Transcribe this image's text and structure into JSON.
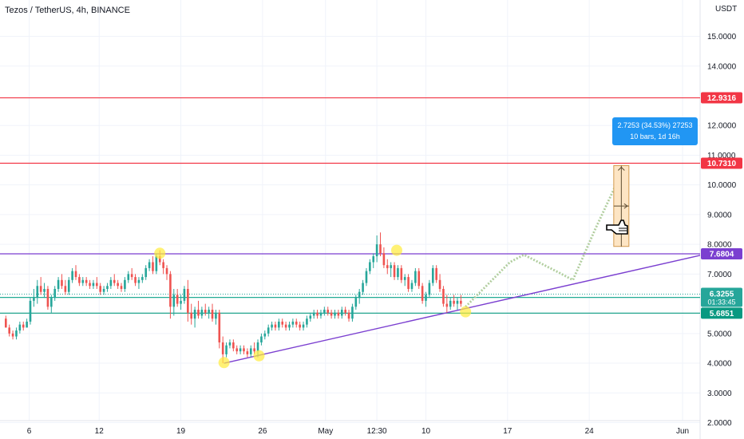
{
  "chart_data": {
    "type": "candlestick",
    "title": "Tezos / TetherUS, 4h, BINANCE",
    "currency": "USDT",
    "ylim": [
      1.6,
      15.6
    ],
    "y_ticks": [
      {
        "value": 2.0,
        "label": "2.0000"
      },
      {
        "value": 3.0,
        "label": "3.0000"
      },
      {
        "value": 4.0,
        "label": "4.0000"
      },
      {
        "value": 5.0,
        "label": "5.0000"
      },
      {
        "value": 7.0,
        "label": "7.0000"
      },
      {
        "value": 8.0,
        "label": "8.0000"
      },
      {
        "value": 9.0,
        "label": "9.0000"
      },
      {
        "value": 10.0,
        "label": "10.0000"
      },
      {
        "value": 11.0,
        "label": "11.0000"
      },
      {
        "value": 12.0,
        "label": "12.0000"
      },
      {
        "value": 14.0,
        "label": "14.0000"
      },
      {
        "value": 15.0,
        "label": "15.0000"
      }
    ],
    "x_ticks": [
      {
        "day": 6,
        "label": "6"
      },
      {
        "day": 12,
        "label": "12"
      },
      {
        "day": 19,
        "label": "19"
      },
      {
        "day": 26,
        "label": "26"
      },
      {
        "day": 31.4,
        "label": "May"
      },
      {
        "day": 35.8,
        "label": "12:30"
      },
      {
        "day": 40,
        "label": "10"
      },
      {
        "day": 47,
        "label": "17"
      },
      {
        "day": 54,
        "label": "24"
      },
      {
        "day": 62,
        "label": "Jun"
      }
    ],
    "xlim": [
      3.5,
      63.5
    ],
    "price_levels": [
      {
        "name": "resistance-12-9316",
        "value": 12.9316,
        "label": "12.9316",
        "color": "#f23645"
      },
      {
        "name": "resistance-10-7310",
        "value": 10.731,
        "label": "10.7310",
        "color": "#f23645"
      },
      {
        "name": "level-7-6804",
        "value": 7.6804,
        "label": "7.6804",
        "color": "#7b3fd0"
      },
      {
        "name": "support-6-2139",
        "value": 6.2139,
        "label": "6.2139",
        "color": "#22ab94"
      },
      {
        "name": "support-5-6851",
        "value": 5.6851,
        "label": "5.6851",
        "color": "#089981"
      }
    ],
    "current_price": {
      "value": 6.3255,
      "label": "6.3255",
      "countdown": "01:33:45",
      "color": "#26a69a"
    },
    "trendline": {
      "color": "#7b3fd0",
      "points": [
        {
          "day": 22.7,
          "value": 4.0
        },
        {
          "day": 63.5,
          "value": 7.63
        }
      ]
    },
    "highlight_points": [
      {
        "day": 17.2,
        "value": 7.7
      },
      {
        "day": 22.7,
        "value": 4.02
      },
      {
        "day": 25.7,
        "value": 4.25
      },
      {
        "day": 37.5,
        "value": 7.8
      },
      {
        "day": 43.4,
        "value": 5.73
      }
    ],
    "projection": {
      "color": "#a8d8a0",
      "points": [
        {
          "day": 43.4,
          "value": 5.9
        },
        {
          "day": 47.2,
          "value": 7.4
        },
        {
          "day": 48.4,
          "value": 7.65
        },
        {
          "day": 51.4,
          "value": 7.05
        },
        {
          "day": 52.6,
          "value": 6.8
        },
        {
          "day": 54.5,
          "value": 8.5
        },
        {
          "day": 57,
          "value": 10.6
        }
      ]
    },
    "measure_box": {
      "day_start": 56.1,
      "day_end": 57.4,
      "low": 7.93,
      "high": 10.65,
      "fill": "#fde5c4",
      "stroke": "#d39a4e"
    },
    "measure_label": {
      "line1": "2.7253 (34.53%) 27253",
      "line2": "10 bars, 1d 16h",
      "color": "#2196f3"
    },
    "candles": [
      [
        4.0,
        5.5,
        5.6,
        5.2,
        5.2
      ],
      [
        4.3,
        5.2,
        5.3,
        4.9,
        5.0
      ],
      [
        4.6,
        5.0,
        5.1,
        4.8,
        4.9
      ],
      [
        4.9,
        4.9,
        5.2,
        4.8,
        5.1
      ],
      [
        5.2,
        5.1,
        5.4,
        5.0,
        5.3
      ],
      [
        5.5,
        5.3,
        5.4,
        5.1,
        5.2
      ],
      [
        5.8,
        5.2,
        5.5,
        5.2,
        5.4
      ],
      [
        6.1,
        5.4,
        6.2,
        5.3,
        6.1
      ],
      [
        6.4,
        6.1,
        6.5,
        5.9,
        6.2
      ],
      [
        6.7,
        6.2,
        6.8,
        6.0,
        6.6
      ],
      [
        7.0,
        6.6,
        6.9,
        6.3,
        6.4
      ],
      [
        7.3,
        6.4,
        6.7,
        6.2,
        6.5
      ],
      [
        7.6,
        6.5,
        6.6,
        5.8,
        5.9
      ],
      [
        7.9,
        5.9,
        6.3,
        5.7,
        6.2
      ],
      [
        8.2,
        6.2,
        6.6,
        6.1,
        6.5
      ],
      [
        8.5,
        6.5,
        6.9,
        6.4,
        6.8
      ],
      [
        8.8,
        6.8,
        7.0,
        6.5,
        6.6
      ],
      [
        9.1,
        6.6,
        6.8,
        6.3,
        6.4
      ],
      [
        9.4,
        6.4,
        6.9,
        6.3,
        6.8
      ],
      [
        9.7,
        6.8,
        7.2,
        6.7,
        7.1
      ],
      [
        10.0,
        7.1,
        7.3,
        6.8,
        6.9
      ],
      [
        10.3,
        6.9,
        7.0,
        6.6,
        6.7
      ],
      [
        10.6,
        6.7,
        6.9,
        6.6,
        6.8
      ],
      [
        10.9,
        6.8,
        6.9,
        6.6,
        6.7
      ],
      [
        11.2,
        6.7,
        6.8,
        6.5,
        6.6
      ],
      [
        11.5,
        6.6,
        6.8,
        6.5,
        6.7
      ],
      [
        11.8,
        6.7,
        6.9,
        6.5,
        6.6
      ],
      [
        12.1,
        6.6,
        6.7,
        6.3,
        6.4
      ],
      [
        12.4,
        6.4,
        6.6,
        6.3,
        6.5
      ],
      [
        12.7,
        6.5,
        6.7,
        6.4,
        6.6
      ],
      [
        13.0,
        6.6,
        6.9,
        6.5,
        6.8
      ],
      [
        13.3,
        6.8,
        7.0,
        6.6,
        6.7
      ],
      [
        13.6,
        6.7,
        6.8,
        6.5,
        6.6
      ],
      [
        13.9,
        6.6,
        6.7,
        6.4,
        6.5
      ],
      [
        14.2,
        6.5,
        6.9,
        6.4,
        6.8
      ],
      [
        14.5,
        6.8,
        7.1,
        6.7,
        7.0
      ],
      [
        14.8,
        7.0,
        7.2,
        6.8,
        6.9
      ],
      [
        15.1,
        6.9,
        7.0,
        6.6,
        6.7
      ],
      [
        15.4,
        6.7,
        6.9,
        6.5,
        6.8
      ],
      [
        15.7,
        6.8,
        7.0,
        6.7,
        6.9
      ],
      [
        16.0,
        6.9,
        7.3,
        6.8,
        7.2
      ],
      [
        16.3,
        7.2,
        7.5,
        7.1,
        7.4
      ],
      [
        16.6,
        7.4,
        7.6,
        7.0,
        7.1
      ],
      [
        16.9,
        7.1,
        7.7,
        7.0,
        7.6
      ],
      [
        17.2,
        7.6,
        7.8,
        7.3,
        7.4
      ],
      [
        17.5,
        7.4,
        7.5,
        7.0,
        7.2
      ],
      [
        17.8,
        7.2,
        7.3,
        6.8,
        7.0
      ],
      [
        18.1,
        7.0,
        7.1,
        5.5,
        5.9
      ],
      [
        18.4,
        5.9,
        6.5,
        5.6,
        6.3
      ],
      [
        18.7,
        6.3,
        6.5,
        5.9,
        6.0
      ],
      [
        19.0,
        6.0,
        6.3,
        5.8,
        6.1
      ],
      [
        19.3,
        6.1,
        6.6,
        6.0,
        6.5
      ],
      [
        19.6,
        6.5,
        6.8,
        5.4,
        5.7
      ],
      [
        19.9,
        5.7,
        6.0,
        5.3,
        5.5
      ],
      [
        20.2,
        5.5,
        5.9,
        5.2,
        5.8
      ],
      [
        20.5,
        5.8,
        6.1,
        5.5,
        5.6
      ],
      [
        20.8,
        5.6,
        5.9,
        5.5,
        5.8
      ],
      [
        21.1,
        5.8,
        6.0,
        5.6,
        5.7
      ],
      [
        21.4,
        5.7,
        5.9,
        5.5,
        5.8
      ],
      [
        21.7,
        5.8,
        6.0,
        5.4,
        5.5
      ],
      [
        22.0,
        5.5,
        5.8,
        5.3,
        5.7
      ],
      [
        22.3,
        5.7,
        5.8,
        4.5,
        4.7
      ],
      [
        22.6,
        4.7,
        4.9,
        4.0,
        4.3
      ],
      [
        22.9,
        4.3,
        4.7,
        4.2,
        4.6
      ],
      [
        23.2,
        4.6,
        4.8,
        4.5,
        4.7
      ],
      [
        23.5,
        4.7,
        4.8,
        4.4,
        4.5
      ],
      [
        23.8,
        4.5,
        4.6,
        4.3,
        4.4
      ],
      [
        24.1,
        4.4,
        4.6,
        4.3,
        4.5
      ],
      [
        24.4,
        4.5,
        4.6,
        4.3,
        4.4
      ],
      [
        24.7,
        4.4,
        4.5,
        4.2,
        4.3
      ],
      [
        25.0,
        4.3,
        4.6,
        4.2,
        4.5
      ],
      [
        25.3,
        4.5,
        4.7,
        4.3,
        4.4
      ],
      [
        25.6,
        4.4,
        4.8,
        4.2,
        4.7
      ],
      [
        25.9,
        4.7,
        5.0,
        4.6,
        4.9
      ],
      [
        26.2,
        4.9,
        5.1,
        4.8,
        5.0
      ],
      [
        26.5,
        5.0,
        5.3,
        4.9,
        5.2
      ],
      [
        26.8,
        5.2,
        5.4,
        5.1,
        5.3
      ],
      [
        27.1,
        5.3,
        5.4,
        5.1,
        5.2
      ],
      [
        27.4,
        5.2,
        5.5,
        5.1,
        5.4
      ],
      [
        27.7,
        5.4,
        5.5,
        5.2,
        5.3
      ],
      [
        28.0,
        5.3,
        5.4,
        5.1,
        5.2
      ],
      [
        28.3,
        5.2,
        5.4,
        5.1,
        5.3
      ],
      [
        28.6,
        5.3,
        5.5,
        5.2,
        5.4
      ],
      [
        28.9,
        5.4,
        5.5,
        5.2,
        5.3
      ],
      [
        29.2,
        5.3,
        5.4,
        5.1,
        5.2
      ],
      [
        29.5,
        5.2,
        5.4,
        5.1,
        5.3
      ],
      [
        29.8,
        5.3,
        5.6,
        5.2,
        5.5
      ],
      [
        30.1,
        5.5,
        5.7,
        5.4,
        5.6
      ],
      [
        30.4,
        5.6,
        5.8,
        5.5,
        5.7
      ],
      [
        30.7,
        5.7,
        5.8,
        5.5,
        5.6
      ],
      [
        31.0,
        5.6,
        5.8,
        5.5,
        5.7
      ],
      [
        31.3,
        5.7,
        5.9,
        5.6,
        5.8
      ],
      [
        31.6,
        5.8,
        5.9,
        5.6,
        5.7
      ],
      [
        31.9,
        5.7,
        5.8,
        5.5,
        5.6
      ],
      [
        32.2,
        5.6,
        5.8,
        5.5,
        5.7
      ],
      [
        32.5,
        5.7,
        5.8,
        5.5,
        5.6
      ],
      [
        32.8,
        5.6,
        5.9,
        5.5,
        5.8
      ],
      [
        33.1,
        5.8,
        5.9,
        5.6,
        5.7
      ],
      [
        33.4,
        5.7,
        5.8,
        5.4,
        5.5
      ],
      [
        33.7,
        5.5,
        6.0,
        5.4,
        5.9
      ],
      [
        34.0,
        5.9,
        6.3,
        5.8,
        6.2
      ],
      [
        34.3,
        6.2,
        6.5,
        6.0,
        6.4
      ],
      [
        34.6,
        6.4,
        6.8,
        6.3,
        6.7
      ],
      [
        34.9,
        6.7,
        7.2,
        6.6,
        7.1
      ],
      [
        35.2,
        7.1,
        7.5,
        7.0,
        7.4
      ],
      [
        35.5,
        7.4,
        7.7,
        7.2,
        7.6
      ],
      [
        35.8,
        7.6,
        8.3,
        7.4,
        8.0
      ],
      [
        36.1,
        8.0,
        8.4,
        7.6,
        7.7
      ],
      [
        36.4,
        7.7,
        7.9,
        7.2,
        7.3
      ],
      [
        36.7,
        7.3,
        7.5,
        7.0,
        7.2
      ],
      [
        37.0,
        7.2,
        7.4,
        6.9,
        7.3
      ],
      [
        37.3,
        7.3,
        7.4,
        6.8,
        6.9
      ],
      [
        37.6,
        6.9,
        7.3,
        6.8,
        7.2
      ],
      [
        37.9,
        7.2,
        7.3,
        6.7,
        6.8
      ],
      [
        38.2,
        6.8,
        7.0,
        6.6,
        6.9
      ],
      [
        38.5,
        6.9,
        7.0,
        6.4,
        6.5
      ],
      [
        38.8,
        6.5,
        6.8,
        6.4,
        6.7
      ],
      [
        39.1,
        6.7,
        7.2,
        6.6,
        7.1
      ],
      [
        39.4,
        7.1,
        7.2,
        6.5,
        6.6
      ],
      [
        39.7,
        6.6,
        6.7,
        6.0,
        6.1
      ],
      [
        40.0,
        6.1,
        6.4,
        5.9,
        6.3
      ],
      [
        40.3,
        6.3,
        6.8,
        6.2,
        6.7
      ],
      [
        40.6,
        6.7,
        7.3,
        6.6,
        7.2
      ],
      [
        40.9,
        7.2,
        7.3,
        6.7,
        6.8
      ],
      [
        41.2,
        6.8,
        7.0,
        6.4,
        6.5
      ],
      [
        41.5,
        6.5,
        6.6,
        5.9,
        6.0
      ],
      [
        41.8,
        6.0,
        6.3,
        5.7,
        5.9
      ],
      [
        42.1,
        5.9,
        6.2,
        5.8,
        6.1
      ],
      [
        42.4,
        6.1,
        6.3,
        5.9,
        6.0
      ],
      [
        42.7,
        6.0,
        6.2,
        5.8,
        6.1
      ],
      [
        43.0,
        6.1,
        6.3,
        5.9,
        6.0
      ]
    ]
  }
}
